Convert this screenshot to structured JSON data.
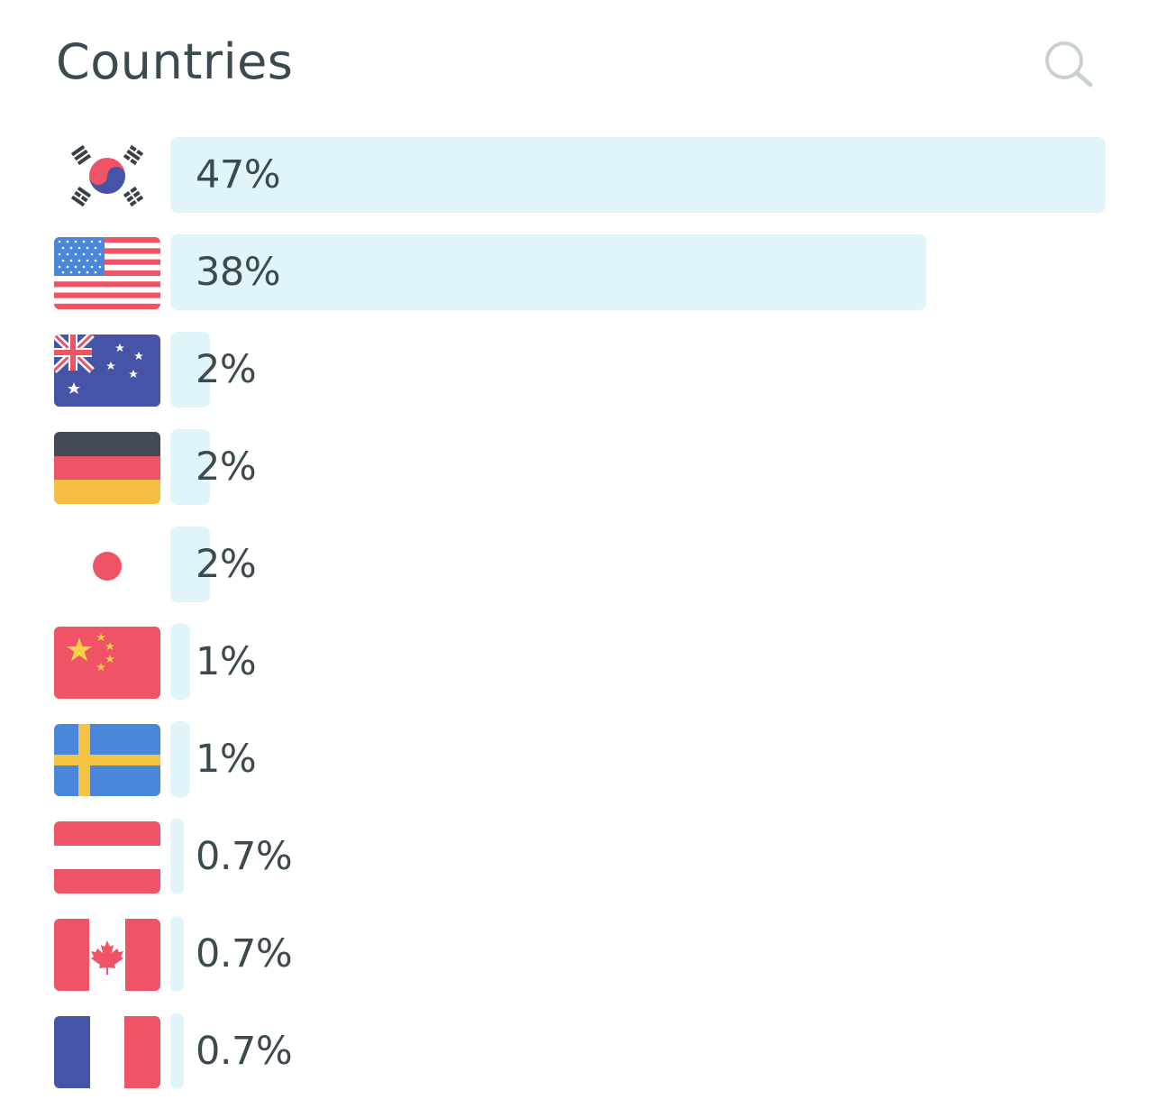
{
  "header": {
    "title": "Countries",
    "search_icon": "search-icon"
  },
  "colors": {
    "bar": "#dff5fa",
    "text": "#3b4a4e",
    "icon": "#c8d0d2"
  },
  "countries": [
    {
      "flag": "south-korea",
      "label": "47%",
      "value": 47
    },
    {
      "flag": "united-states",
      "label": "38%",
      "value": 38
    },
    {
      "flag": "australia",
      "label": "2%",
      "value": 2
    },
    {
      "flag": "germany",
      "label": "2%",
      "value": 2
    },
    {
      "flag": "japan",
      "label": "2%",
      "value": 2
    },
    {
      "flag": "china",
      "label": "1%",
      "value": 1
    },
    {
      "flag": "sweden",
      "label": "1%",
      "value": 1
    },
    {
      "flag": "austria",
      "label": "0.7%",
      "value": 0.7
    },
    {
      "flag": "canada",
      "label": "0.7%",
      "value": 0.7
    },
    {
      "flag": "france",
      "label": "0.7%",
      "value": 0.7
    }
  ]
}
